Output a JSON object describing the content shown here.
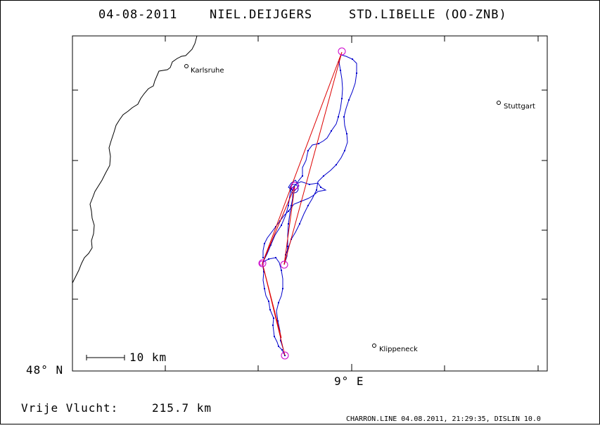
{
  "header": {
    "date": "04-08-2011",
    "pilot": "NIEL.DEIJGERS",
    "glider": "STD.LIBELLE (OO-ZNB)"
  },
  "map": {
    "lat_label": "48° N",
    "lon_label": "9° E",
    "scale_label": "10 km",
    "cities": [
      {
        "name": "Karlsruhe"
      },
      {
        "name": "Stuttgart"
      },
      {
        "name": "Klippeneck"
      }
    ],
    "colors": {
      "track": "#0000cc",
      "task": "#dd0000",
      "turnpoint": "#cc00cc",
      "border": "#000000"
    }
  },
  "footer": {
    "distance_label": "Vrije Vlucht:",
    "distance_value": "215.7 km",
    "credit": "CHARRON.LINE 04.08.2011, 21:29:35, DISLIN 10.0"
  }
}
